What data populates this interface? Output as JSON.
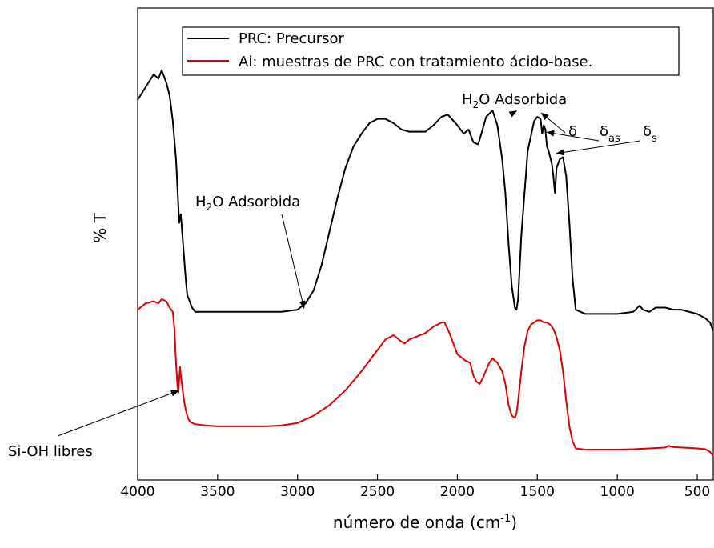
{
  "chart_data": {
    "type": "line",
    "title": "",
    "xlabel": "número de onda (cm-1)",
    "xlabel_parts": {
      "main": "número de onda (cm",
      "sup": "-1",
      "tail": ")"
    },
    "ylabel": "% T",
    "xlim": [
      4000,
      400
    ],
    "x_reversed": true,
    "y_ticks_shown": false,
    "grid": false,
    "legend_position": "top",
    "xticks": [
      4000,
      3500,
      3000,
      2500,
      2000,
      1500,
      1000,
      500
    ],
    "xtick_labels": [
      "4000",
      "3500",
      "3000",
      "2500",
      "2000",
      "1500",
      "1000",
      "500"
    ],
    "ylim": [
      0,
      100
    ],
    "series": [
      {
        "name": "PRC: Precursor",
        "color": "#000000",
        "x": [
          4000,
          3950,
          3900,
          3870,
          3850,
          3820,
          3800,
          3780,
          3760,
          3740,
          3730,
          3720,
          3710,
          3700,
          3690,
          3680,
          3670,
          3660,
          3640,
          3600,
          3500,
          3300,
          3100,
          3000,
          2950,
          2900,
          2850,
          2800,
          2750,
          2700,
          2650,
          2600,
          2550,
          2500,
          2450,
          2400,
          2350,
          2300,
          2200,
          2150,
          2100,
          2060,
          2000,
          1960,
          1930,
          1900,
          1870,
          1850,
          1820,
          1780,
          1750,
          1720,
          1700,
          1680,
          1660,
          1640,
          1630,
          1620,
          1600,
          1560,
          1520,
          1500,
          1480,
          1470,
          1460,
          1450,
          1440,
          1430,
          1420,
          1410,
          1400,
          1390,
          1380,
          1360,
          1340,
          1320,
          1300,
          1280,
          1260,
          1200,
          1100,
          1000,
          900,
          860,
          840,
          800,
          760,
          700,
          650,
          600,
          550,
          500,
          450,
          420,
          400
        ],
        "y": [
          84,
          87,
          90,
          89,
          91,
          88,
          85,
          79,
          70,
          55,
          57,
          52,
          47,
          42,
          38,
          37,
          36,
          35,
          34,
          34,
          34,
          34,
          34,
          34.5,
          36,
          39,
          45,
          53,
          61,
          68,
          73,
          76,
          78.5,
          79.5,
          79.5,
          78.5,
          77,
          76.5,
          76.5,
          78,
          80,
          80.5,
          78,
          76,
          77,
          74,
          73.5,
          76,
          80,
          81.5,
          78,
          70,
          62,
          50,
          40,
          35,
          34.5,
          37,
          52,
          72,
          79,
          80,
          79.5,
          76,
          78,
          77,
          73,
          72,
          70.5,
          69,
          66,
          62,
          68,
          70,
          70.5,
          66,
          55,
          42,
          34.5,
          33.5,
          33.5,
          33.5,
          34,
          35.5,
          34.5,
          34,
          35,
          35,
          34.5,
          34.5,
          34,
          33.5,
          32.5,
          31.5,
          29.5
        ]
      },
      {
        "name": "Ai: muestras de PRC con tratamiento ácido-base.",
        "color": "#e00000",
        "x": [
          4000,
          3950,
          3900,
          3870,
          3850,
          3820,
          3800,
          3780,
          3770,
          3760,
          3750,
          3745,
          3740,
          3735,
          3730,
          3720,
          3710,
          3700,
          3690,
          3680,
          3670,
          3660,
          3640,
          3600,
          3500,
          3400,
          3300,
          3200,
          3100,
          3000,
          2900,
          2800,
          2700,
          2600,
          2500,
          2450,
          2400,
          2350,
          2330,
          2300,
          2200,
          2150,
          2100,
          2080,
          2050,
          2000,
          1950,
          1920,
          1900,
          1880,
          1860,
          1840,
          1800,
          1780,
          1750,
          1720,
          1700,
          1680,
          1660,
          1640,
          1630,
          1620,
          1600,
          1580,
          1560,
          1540,
          1520,
          1500,
          1480,
          1460,
          1440,
          1420,
          1400,
          1380,
          1360,
          1340,
          1320,
          1300,
          1280,
          1260,
          1200,
          1100,
          1000,
          900,
          800,
          700,
          680,
          650,
          600,
          550,
          500,
          450,
          420,
          400
        ],
        "y": [
          34.5,
          36,
          36.5,
          36,
          37,
          36.5,
          35,
          34,
          30,
          22,
          16,
          15,
          18,
          21,
          19,
          16,
          13,
          11,
          9.5,
          8.5,
          8,
          7.8,
          7.5,
          7.3,
          7,
          7,
          7,
          7,
          7.2,
          7.8,
          9.5,
          12,
          15.5,
          20,
          25,
          27.5,
          28.5,
          27,
          26.5,
          27.5,
          29,
          30.5,
          31.5,
          31.5,
          29,
          24,
          22.5,
          22,
          19,
          17.5,
          17,
          18.5,
          22,
          23,
          22,
          20,
          17,
          12,
          9.5,
          9,
          10,
          13,
          20,
          26,
          29.5,
          31,
          31.5,
          32,
          32,
          31.5,
          31.5,
          31,
          30,
          28,
          25,
          20,
          13,
          7,
          3.5,
          1.8,
          1.5,
          1.5,
          1.5,
          1.6,
          1.8,
          2,
          2.4,
          2.1,
          2,
          1.9,
          1.8,
          1.6,
          1,
          0
        ]
      }
    ],
    "annotations": [
      {
        "id": "h2o-left",
        "text_main": "H",
        "text_sub": "2",
        "text_tail": "O Adsorbida",
        "arrow_to_x": 2960,
        "arrow_to_y": 34.5
      },
      {
        "id": "h2o-right",
        "text_main": "H",
        "text_sub": "2",
        "text_tail": "O Adsorbida",
        "arrow_to_x": 1630,
        "arrow_to_y": 81
      },
      {
        "id": "delta",
        "text_main": "δ",
        "text_sub": "",
        "arrow_to_x": 1475,
        "arrow_to_y": 80.5
      },
      {
        "id": "delta-as",
        "text_main": "δ",
        "text_sub": "as",
        "arrow_to_x": 1440,
        "arrow_to_y": 76
      },
      {
        "id": "delta-s",
        "text_main": "δ",
        "text_sub": "s",
        "arrow_to_x": 1380,
        "arrow_to_y": 71
      },
      {
        "id": "si-oh",
        "text_main": "Si-OH libres",
        "text_sub": "",
        "arrow_to_x": 3745,
        "arrow_to_y": 15
      }
    ]
  }
}
